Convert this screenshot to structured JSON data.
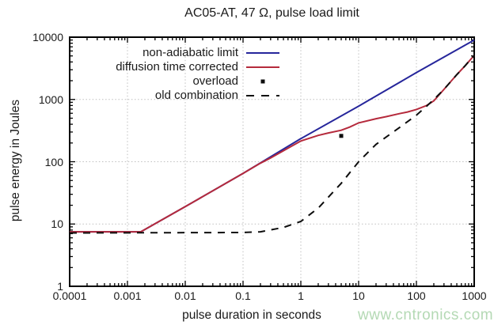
{
  "title": "AC05-AT, 47 Ω, pulse load limit",
  "watermark": {
    "text": "www.cntronics.com",
    "color": "#b4d9b4"
  },
  "axes": {
    "x": {
      "label": "pulse duration in seconds",
      "scale": "log",
      "min": 0.0001,
      "max": 1000,
      "ticks": [
        "0.0001",
        "0.001",
        "0.01",
        "0.1",
        "1",
        "10",
        "100",
        "1000"
      ]
    },
    "y": {
      "label": "pulse energy in Joules",
      "scale": "log",
      "min": 1,
      "max": 10000,
      "ticks": [
        "1",
        "10",
        "100",
        "1000",
        "10000"
      ]
    }
  },
  "legend": {
    "items": [
      {
        "label": "non-adiabatic limit",
        "type": "line",
        "color": "#26269b"
      },
      {
        "label": "diffusion time corrected",
        "type": "line",
        "color": "#b52a3c"
      },
      {
        "label": "overload",
        "type": "dot",
        "color": "#0d0d0d"
      },
      {
        "label": "old combination",
        "type": "dash",
        "color": "#0d0d0d"
      }
    ]
  },
  "chart_data": {
    "type": "line",
    "title": "AC05-AT, 47 Ω, pulse load limit",
    "xlabel": "pulse duration in seconds",
    "ylabel": "pulse energy in Joules",
    "x_scale": "log",
    "y_scale": "log",
    "xlim": [
      0.0001,
      1000
    ],
    "ylim": [
      1,
      10000
    ],
    "grid": true,
    "legend_position": "top-left-inside",
    "series": [
      {
        "name": "non-adiabatic limit",
        "style": "solid",
        "color": "#26269b",
        "points": [
          [
            0.0001,
            7.5
          ],
          [
            0.0017,
            7.5
          ],
          [
            0.01,
            19
          ],
          [
            0.1,
            65
          ],
          [
            1,
            235
          ],
          [
            10,
            780
          ],
          [
            100,
            2700
          ],
          [
            1000,
            9000
          ]
        ]
      },
      {
        "name": "diffusion time corrected",
        "style": "solid",
        "color": "#b52a3c",
        "points": [
          [
            0.0001,
            7.5
          ],
          [
            0.0017,
            7.5
          ],
          [
            0.01,
            19
          ],
          [
            0.1,
            65
          ],
          [
            0.2,
            95
          ],
          [
            0.3,
            115
          ],
          [
            0.5,
            150
          ],
          [
            1,
            215
          ],
          [
            2,
            265
          ],
          [
            3,
            290
          ],
          [
            5,
            320
          ],
          [
            7,
            360
          ],
          [
            10,
            420
          ],
          [
            20,
            490
          ],
          [
            30,
            530
          ],
          [
            50,
            590
          ],
          [
            70,
            630
          ],
          [
            100,
            690
          ],
          [
            150,
            800
          ],
          [
            200,
            950
          ],
          [
            300,
            1450
          ],
          [
            500,
            2500
          ],
          [
            700,
            3500
          ],
          [
            1000,
            5100
          ]
        ]
      },
      {
        "name": "old combination",
        "style": "dashed",
        "color": "#0d0d0d",
        "points": [
          [
            0.0001,
            7.2
          ],
          [
            0.1,
            7.3
          ],
          [
            0.2,
            7.5
          ],
          [
            0.5,
            8.8
          ],
          [
            1,
            11
          ],
          [
            2,
            18
          ],
          [
            5,
            45
          ],
          [
            10,
            100
          ],
          [
            20,
            190
          ],
          [
            50,
            350
          ],
          [
            100,
            560
          ],
          [
            150,
            780
          ],
          [
            200,
            1000
          ],
          [
            300,
            1450
          ],
          [
            500,
            2500
          ],
          [
            700,
            3500
          ],
          [
            1000,
            5100
          ]
        ]
      }
    ],
    "markers": [
      {
        "name": "overload",
        "shape": "square",
        "color": "#0d0d0d",
        "points": [
          [
            5,
            260
          ]
        ]
      }
    ]
  }
}
